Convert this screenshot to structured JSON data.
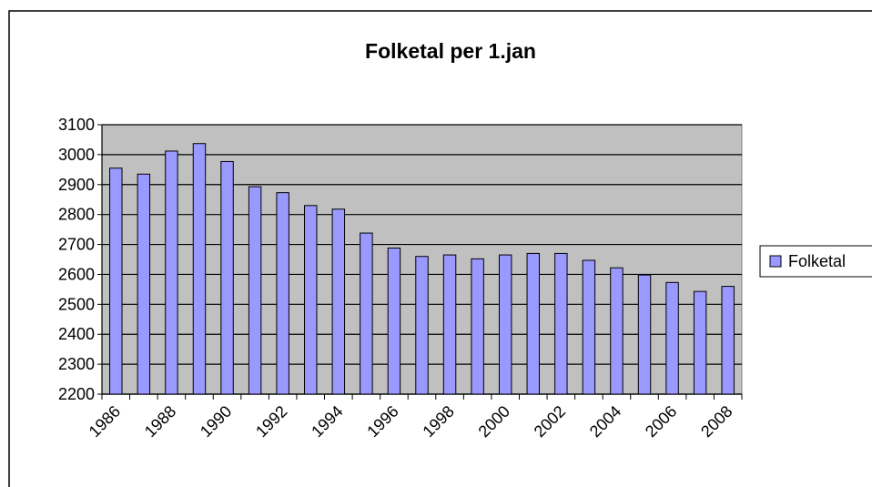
{
  "chart_data": {
    "type": "bar",
    "title": "Folketal per 1.jan",
    "categories": [
      "1986",
      null,
      "1988",
      null,
      "1990",
      null,
      "1992",
      null,
      "1994",
      null,
      "1996",
      null,
      "1998",
      null,
      "2000",
      null,
      "2002",
      null,
      "2004",
      null,
      "2006",
      null,
      "2008"
    ],
    "series": [
      {
        "name": "Folketal",
        "color": "#9999ff",
        "values": [
          2955,
          2935,
          3012,
          3037,
          2977,
          2893,
          2873,
          2830,
          2818,
          2738,
          2688,
          2660,
          2665,
          2652,
          2665,
          2670,
          2670,
          2647,
          2622,
          2598,
          2573,
          2543,
          2560
        ]
      }
    ],
    "ylim": [
      2200,
      3100
    ],
    "yticks": [
      2200,
      2300,
      2400,
      2500,
      2600,
      2700,
      2800,
      2900,
      3000,
      3100
    ],
    "grid": true,
    "legend": "right",
    "plot_background": "#c0c0c0"
  }
}
